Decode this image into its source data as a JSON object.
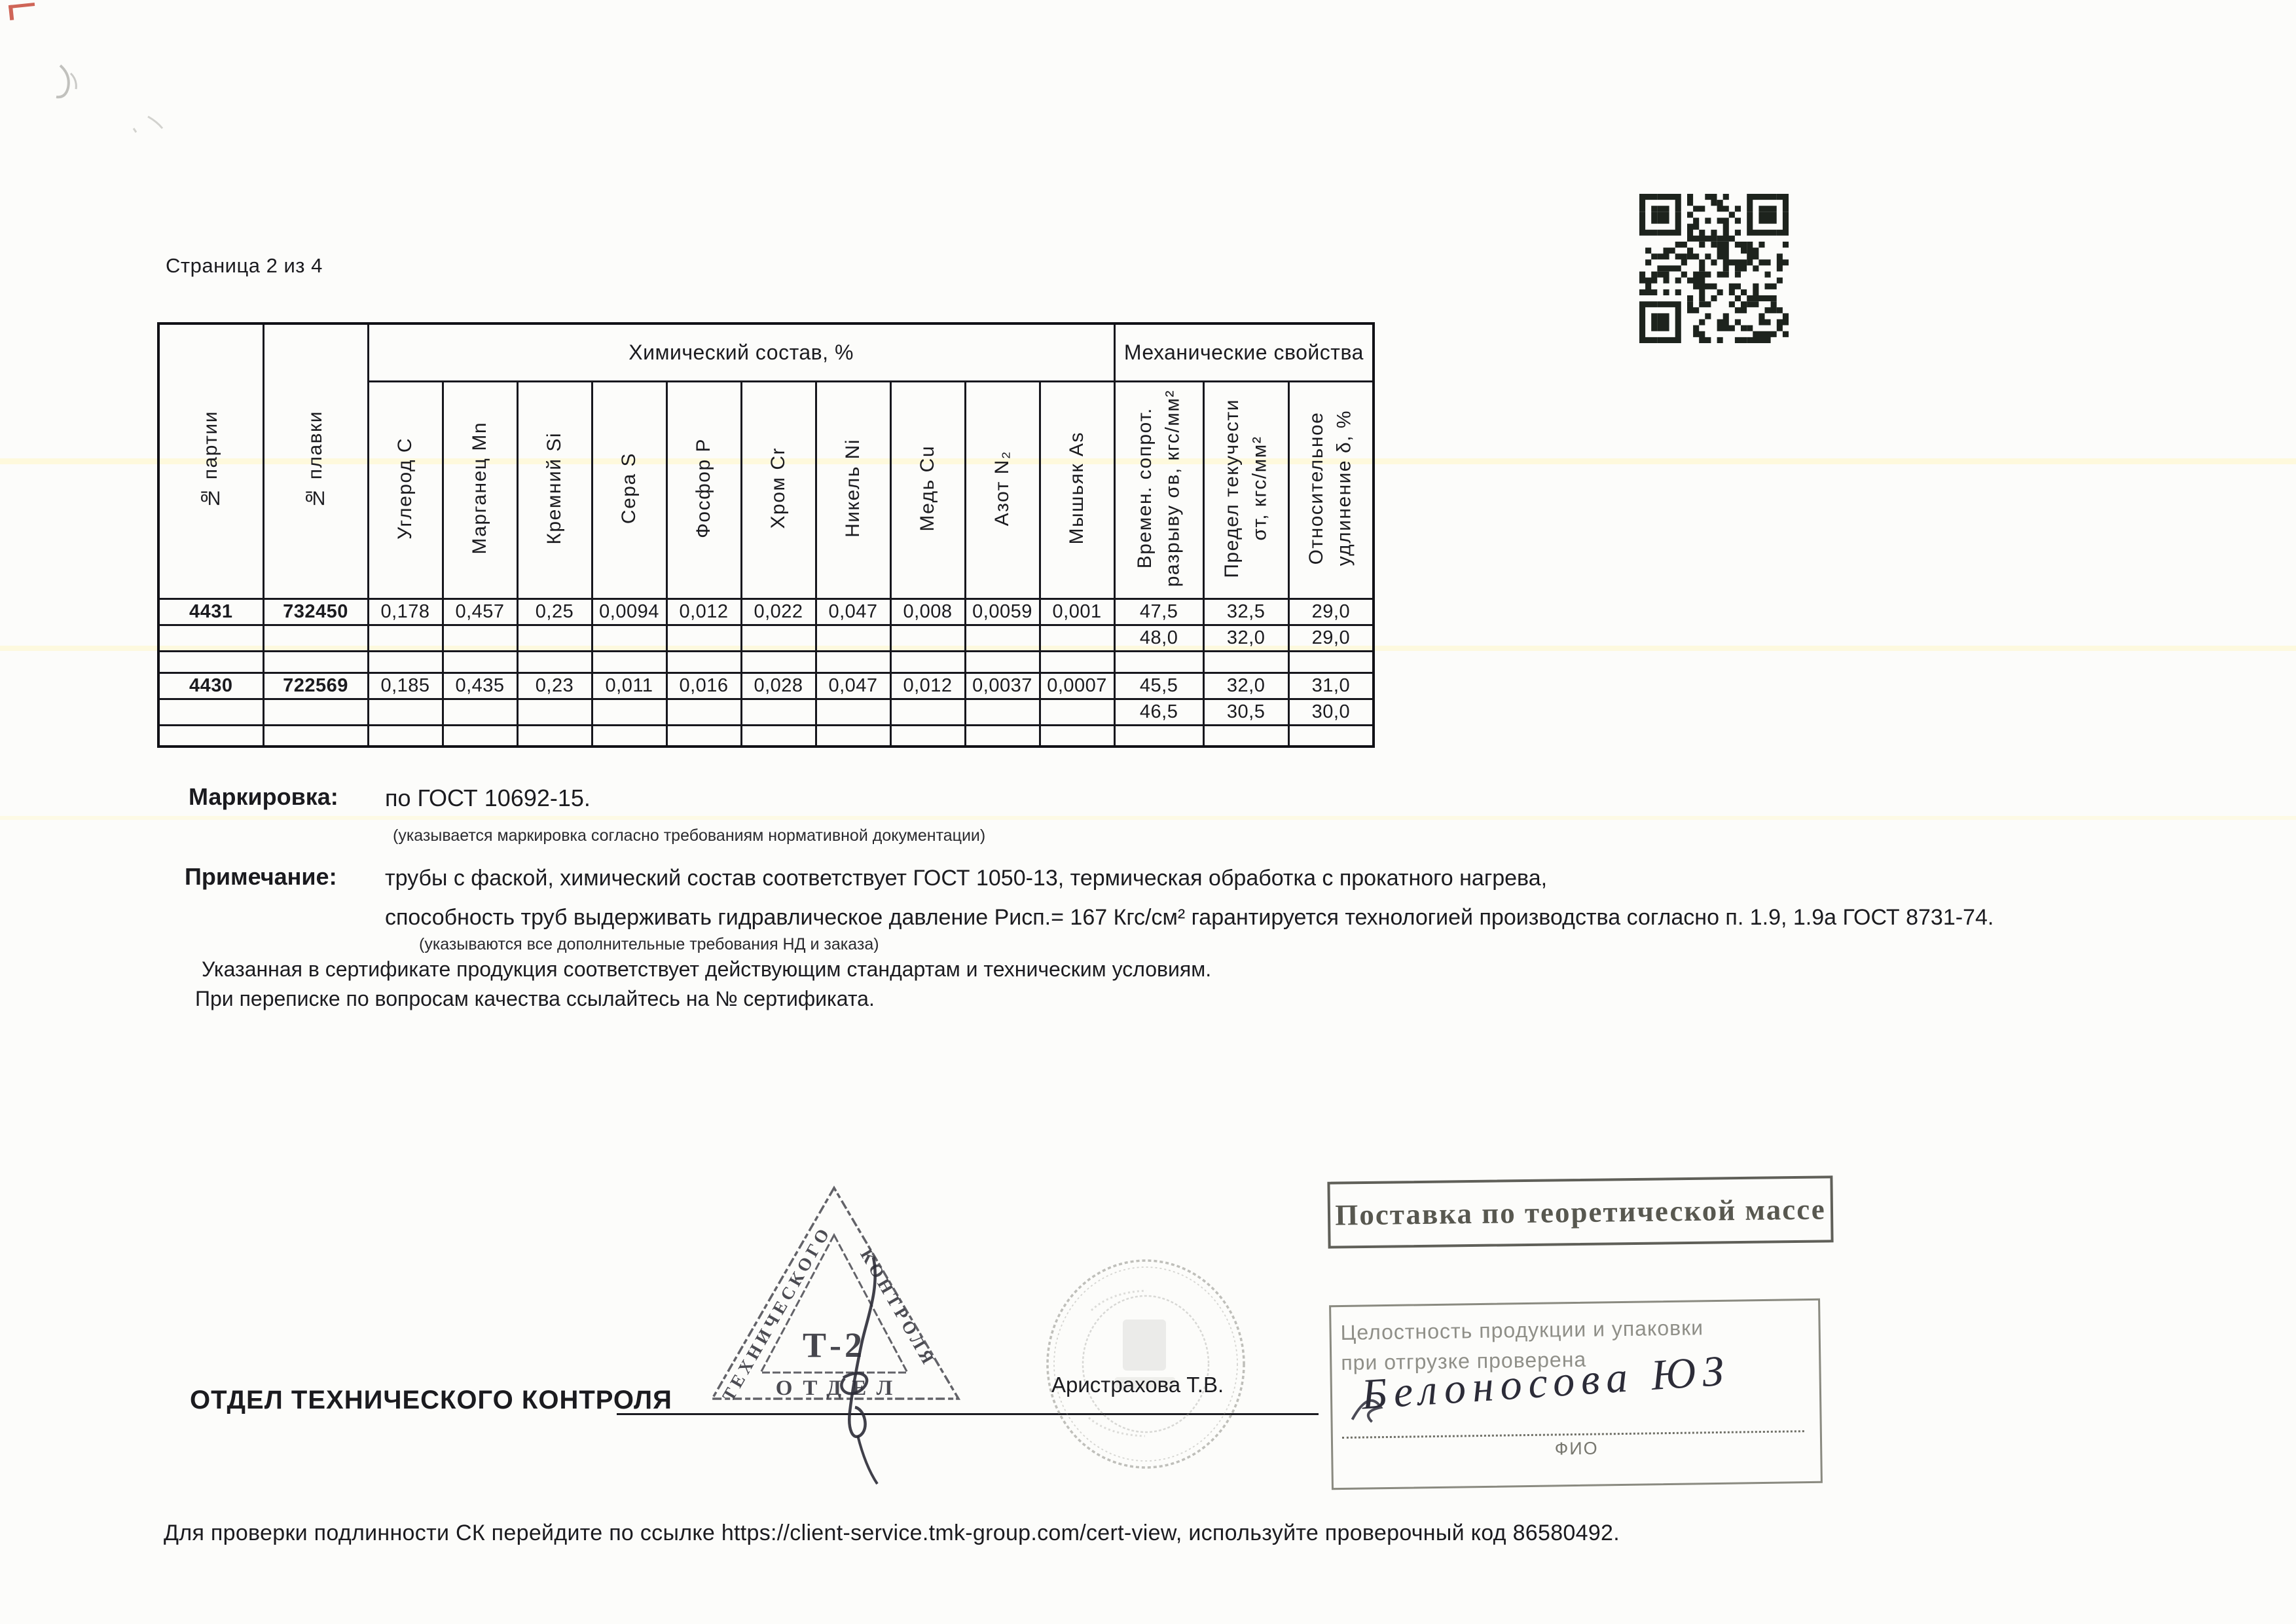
{
  "page": {
    "label": "Страница 2 из 4"
  },
  "table": {
    "group_headers": {
      "chem": "Химический состав, %",
      "mech": "Механические свойства"
    },
    "columns": [
      "№ партии",
      "№ плавки",
      "Углерод С",
      "Марганец Mn",
      "Кремний Si",
      "Сера S",
      "Фосфор Р",
      "Хром Cr",
      "Никель Ni",
      "Медь Cu",
      "Азот N₂",
      "Мышьяк As",
      "Времен. сопрот.\nразрыву σв, кгс/мм²",
      "Предел текучести\nσт, кгс/мм²",
      "Относительное\nудлинение δ, %"
    ],
    "rows": [
      {
        "spacer": false,
        "cells": [
          "4431",
          "732450",
          "0,178",
          "0,457",
          "0,25",
          "0,0094",
          "0,012",
          "0,022",
          "0,047",
          "0,008",
          "0,0059",
          "0,001",
          "47,5",
          "32,5",
          "29,0"
        ]
      },
      {
        "spacer": false,
        "cells": [
          "",
          "",
          "",
          "",
          "",
          "",
          "",
          "",
          "",
          "",
          "",
          "",
          "48,0",
          "32,0",
          "29,0"
        ]
      },
      {
        "spacer": true,
        "cells": [
          "",
          "",
          "",
          "",
          "",
          "",
          "",
          "",
          "",
          "",
          "",
          "",
          "",
          "",
          ""
        ]
      },
      {
        "spacer": false,
        "cells": [
          "4430",
          "722569",
          "0,185",
          "0,435",
          "0,23",
          "0,011",
          "0,016",
          "0,028",
          "0,047",
          "0,012",
          "0,0037",
          "0,0007",
          "45,5",
          "32,0",
          "31,0"
        ]
      },
      {
        "spacer": false,
        "cells": [
          "",
          "",
          "",
          "",
          "",
          "",
          "",
          "",
          "",
          "",
          "",
          "",
          "46,5",
          "30,5",
          "30,0"
        ]
      },
      {
        "spacer": true,
        "cells": [
          "",
          "",
          "",
          "",
          "",
          "",
          "",
          "",
          "",
          "",
          "",
          "",
          "",
          "",
          ""
        ]
      }
    ]
  },
  "marking": {
    "label": "Маркировка:",
    "value": "по ГОСТ 10692-15.",
    "note": "(указывается маркировка согласно требованиям нормативной документации)"
  },
  "note": {
    "label": "Примечание:",
    "line1": "трубы с фаской,   химический состав соответствует ГОСТ 1050-13, термическая обработка с прокатного нагрева,",
    "line2": "способность труб выдерживать гидравлическое давление Рисп.= 167 Кгс/см² гарантируется технологией производства согласно п. 1.9, 1.9а ГОСТ 8731-74.",
    "note": "(указываются все дополнительные требования НД и заказа)"
  },
  "paragraphs": {
    "p1": "Указанная в сертификате продукция соответствует действующим стандартам и техническим условиям.",
    "p2": "При переписке по вопросам качества ссылайтесь на № сертификата."
  },
  "otk": {
    "label": "ОТДЕЛ ТЕХНИЧЕСКОГО КОНТРОЛЯ",
    "signer": "Аристрахова Т.В."
  },
  "stamps": {
    "triangle": {
      "left": "ТЕХНИЧЕСКОГО",
      "right": "КОНТРОЛЯ",
      "center": "Т-2",
      "bottom": "ОТДЕЛ"
    },
    "theoretical": "Поставка по теоретической массе",
    "integrity": "Целостность продукции и упаковки\nпри отгрузке проверена",
    "handwritten": "Белоносова ЮЗ",
    "fio": "ФИО"
  },
  "footer": {
    "text": "Для проверки подлинности СК перейдите по ссылке https://client-service.tmk-group.com/cert-view, используйте проверочный код  86580492."
  },
  "colors": {
    "ink": "#1b1b1f",
    "stamp_gray": "#4c4c44",
    "qr_dark": "#1d231d",
    "artifact_red": "#c4402f"
  }
}
